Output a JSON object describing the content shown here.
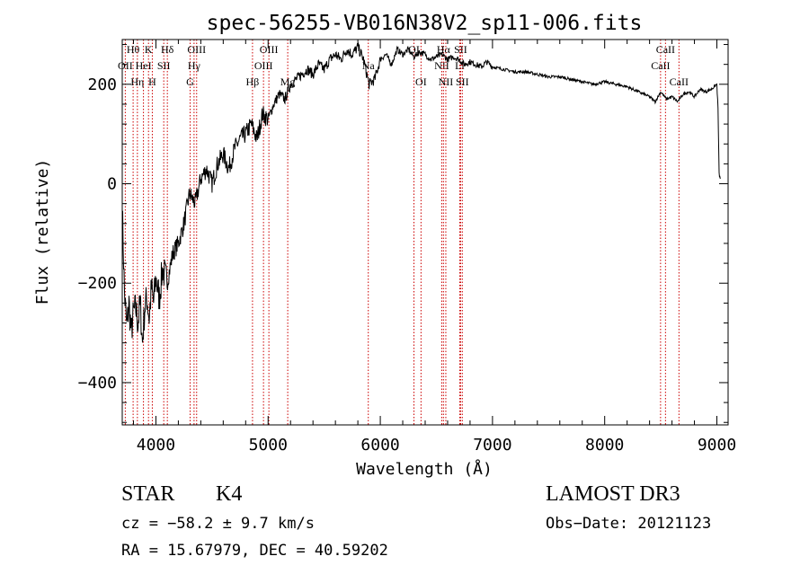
{
  "chart_data": {
    "type": "line",
    "title": "spec-56255-VB016N38V2_sp11-006.fits",
    "xlabel": "Wavelength (Å)",
    "ylabel": "Flux (relative)",
    "xlim": [
      3700,
      9100
    ],
    "ylim": [
      -485,
      290
    ],
    "xticks": [
      4000,
      5000,
      6000,
      7000,
      8000,
      9000
    ],
    "yticks": [
      -400,
      -200,
      0,
      200
    ],
    "grid": false,
    "series": [
      {
        "name": "flux",
        "color": "#000000",
        "x": [
          3700,
          3720,
          3740,
          3760,
          3780,
          3800,
          3820,
          3840,
          3860,
          3880,
          3900,
          3920,
          3940,
          3960,
          3980,
          4000,
          4030,
          4060,
          4100,
          4150,
          4200,
          4250,
          4300,
          4350,
          4400,
          4450,
          4500,
          4550,
          4600,
          4650,
          4700,
          4750,
          4800,
          4850,
          4900,
          4950,
          5000,
          5050,
          5100,
          5150,
          5200,
          5250,
          5300,
          5350,
          5400,
          5450,
          5500,
          5550,
          5600,
          5650,
          5700,
          5750,
          5800,
          5850,
          5900,
          5950,
          6000,
          6050,
          6100,
          6150,
          6200,
          6250,
          6300,
          6350,
          6400,
          6450,
          6500,
          6550,
          6600,
          6650,
          6700,
          6750,
          6800,
          6850,
          6900,
          6950,
          7000,
          7100,
          7200,
          7300,
          7400,
          7500,
          7600,
          7700,
          7800,
          7900,
          8000,
          8100,
          8200,
          8300,
          8400,
          8450,
          8500,
          8550,
          8600,
          8650,
          8700,
          8750,
          8800,
          8850,
          8900,
          8950,
          9000,
          9010,
          9020,
          9030
        ],
        "y": [
          -50,
          -220,
          -290,
          -240,
          -300,
          -260,
          -250,
          -280,
          -240,
          -320,
          -250,
          -230,
          -270,
          -210,
          -240,
          -190,
          -230,
          -170,
          -200,
          -140,
          -120,
          -80,
          -20,
          -40,
          10,
          30,
          0,
          40,
          60,
          30,
          70,
          90,
          100,
          120,
          90,
          140,
          130,
          160,
          180,
          170,
          200,
          210,
          220,
          230,
          220,
          240,
          230,
          250,
          260,
          250,
          270,
          260,
          275,
          250,
          200,
          210,
          250,
          260,
          240,
          270,
          260,
          270,
          255,
          265,
          260,
          250,
          255,
          260,
          250,
          255,
          250,
          240,
          245,
          240,
          235,
          245,
          235,
          230,
          225,
          225,
          220,
          215,
          215,
          210,
          205,
          200,
          205,
          200,
          195,
          185,
          175,
          165,
          185,
          170,
          175,
          165,
          180,
          185,
          175,
          190,
          185,
          190,
          200,
          150,
          20,
          10
        ]
      }
    ],
    "lines": [
      {
        "name": "OII",
        "wavelength": 3727,
        "row": 1
      },
      {
        "name": "Hθ",
        "wavelength": 3797,
        "row": 0
      },
      {
        "name": "Hη",
        "wavelength": 3835,
        "row": 2
      },
      {
        "name": "HeI",
        "wavelength": 3889,
        "row": 1
      },
      {
        "name": "K",
        "wavelength": 3934,
        "row": 0
      },
      {
        "name": "H",
        "wavelength": 3968,
        "row": 2
      },
      {
        "name": "SII",
        "wavelength": 4070,
        "row": 1
      },
      {
        "name": "Hδ",
        "wavelength": 4102,
        "row": 0
      },
      {
        "name": "G",
        "wavelength": 4305,
        "row": 2
      },
      {
        "name": "Hγ",
        "wavelength": 4340,
        "row": 1
      },
      {
        "name": "OIII",
        "wavelength": 4363,
        "row": 0
      },
      {
        "name": "Hβ",
        "wavelength": 4861,
        "row": 2
      },
      {
        "name": "OIII",
        "wavelength": 4959,
        "row": 1
      },
      {
        "name": "OIII",
        "wavelength": 5007,
        "row": 0
      },
      {
        "name": "Mg",
        "wavelength": 5175,
        "row": 2
      },
      {
        "name": "Na",
        "wavelength": 5893,
        "row": 1
      },
      {
        "name": "OI",
        "wavelength": 6300,
        "row": 0
      },
      {
        "name": "OI",
        "wavelength": 6363,
        "row": 2
      },
      {
        "name": "NII",
        "wavelength": 6548,
        "row": 1
      },
      {
        "name": "Hα",
        "wavelength": 6563,
        "row": 0
      },
      {
        "name": "NII",
        "wavelength": 6584,
        "row": 2
      },
      {
        "name": "Li",
        "wavelength": 6708,
        "row": 1
      },
      {
        "name": "SII",
        "wavelength": 6716,
        "row": 0
      },
      {
        "name": "SII",
        "wavelength": 6731,
        "row": 2
      },
      {
        "name": "CaII",
        "wavelength": 8498,
        "row": 1
      },
      {
        "name": "CaII",
        "wavelength": 8542,
        "row": 0
      },
      {
        "name": "CaII",
        "wavelength": 8662,
        "row": 2
      }
    ],
    "line_color": "#cc0000"
  },
  "info": {
    "object_class": "STAR",
    "subclass": "K4",
    "survey": "LAMOST DR3",
    "cz": "cz = −58.2 ± 9.7 km/s",
    "obs_date": "Obs−Date: 20121123",
    "coords": "RA =  15.67979, DEC =  40.59202"
  }
}
